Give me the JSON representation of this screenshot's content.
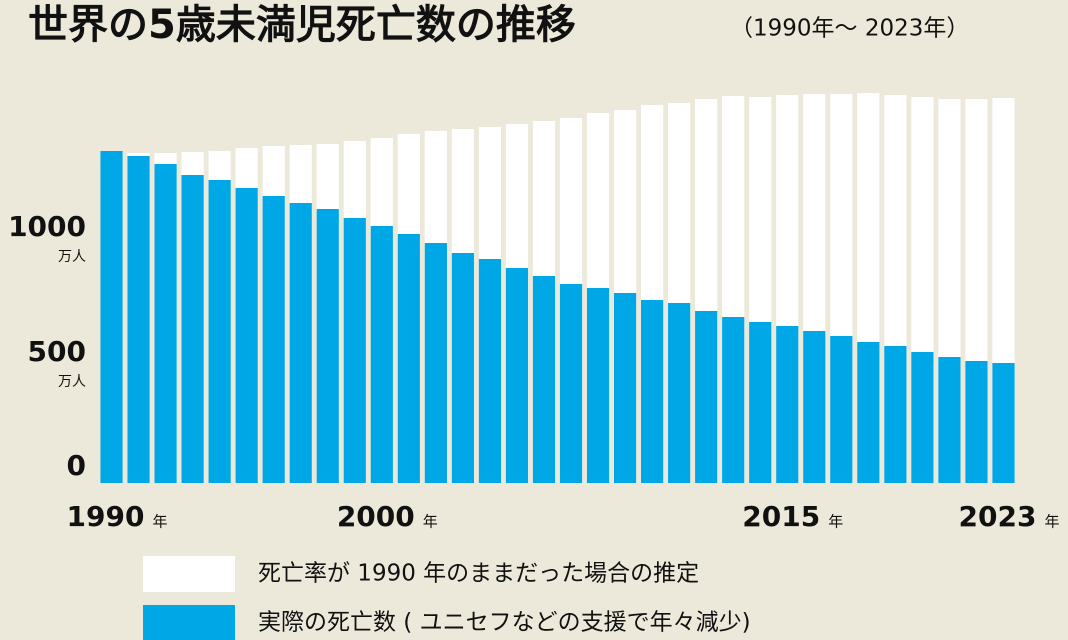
{
  "chart_data": {
    "type": "overlap-bar",
    "title": "世界の5歳未満児死亡数の推移",
    "subtitle": "（1990年～ 2023年）",
    "categories": [
      "1990",
      null,
      null,
      null,
      null,
      null,
      null,
      null,
      null,
      null,
      "2000",
      null,
      null,
      null,
      null,
      null,
      null,
      null,
      null,
      null,
      null,
      null,
      null,
      null,
      null,
      "2015",
      null,
      null,
      null,
      null,
      null,
      null,
      null,
      "2023"
    ],
    "x_unit": "年",
    "y_unit": "万人",
    "ylim": [
      0,
      1600
    ],
    "yticks": [
      0,
      500,
      1000
    ],
    "series": [
      {
        "name": "死亡率が 1990 年のままだった場合の推定",
        "color": "#ffffff",
        "values": [
          1328,
          1320,
          1320,
          1324,
          1328,
          1340,
          1348,
          1352,
          1356,
          1368,
          1380,
          1396,
          1408,
          1416,
          1424,
          1436,
          1448,
          1460,
          1480,
          1492,
          1512,
          1520,
          1536,
          1548,
          1544,
          1552,
          1556,
          1556,
          1560,
          1552,
          1544,
          1536,
          1536,
          1540
        ]
      },
      {
        "name": "実際の死亡数 ( ユニセフなどの支援で年々減少)",
        "color": "#00a7e6",
        "values": [
          1328,
          1308,
          1276,
          1232,
          1212,
          1180,
          1148,
          1120,
          1096,
          1060,
          1028,
          996,
          960,
          920,
          896,
          860,
          828,
          796,
          780,
          760,
          732,
          720,
          688,
          664,
          644,
          628,
          608,
          588,
          564,
          548,
          524,
          504,
          488,
          480
        ]
      }
    ]
  }
}
